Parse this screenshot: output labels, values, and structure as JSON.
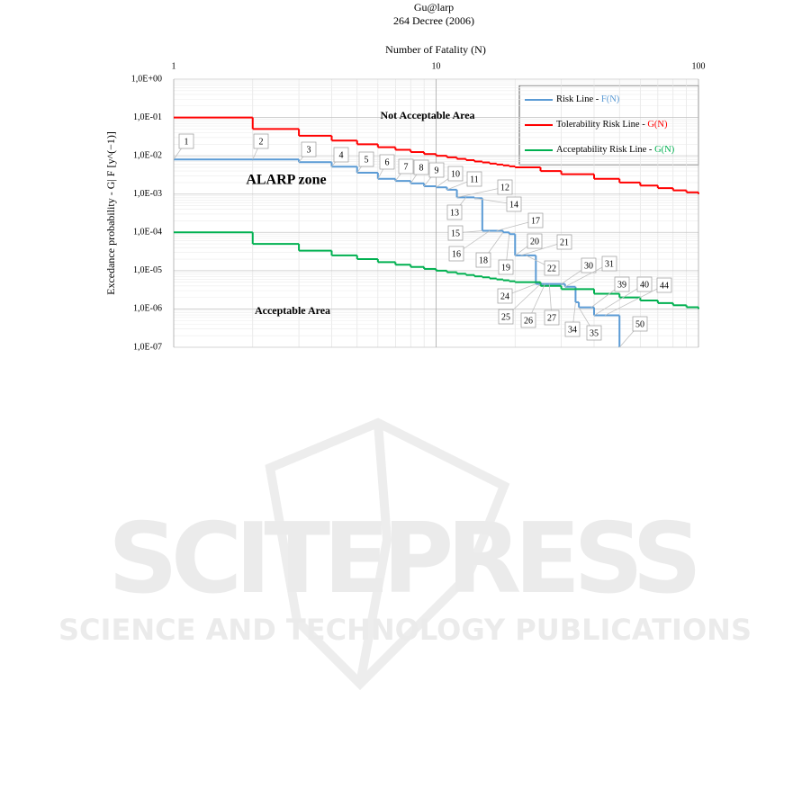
{
  "chart_data": {
    "type": "step",
    "title": "Gu@larp",
    "subtitle": "264 Decree (2006)",
    "x_label": "Number of Fatality (N)",
    "y_label": "Excedance probability - G| F  [y^(−1)]",
    "log_x": true,
    "log_y": true,
    "grid": true,
    "minor_grid": true,
    "legend": "upper right",
    "xlim": [
      1,
      100
    ],
    "xticks": [
      1,
      10,
      100
    ],
    "ylim": [
      1e-07,
      1
    ],
    "yticks": [
      {
        "value": 1,
        "label": "1,0E+00"
      },
      {
        "value": 0.1,
        "label": "1,0E-01"
      },
      {
        "value": 0.01,
        "label": "1,0E-02"
      },
      {
        "value": 0.001,
        "label": "1,0E-03"
      },
      {
        "value": 0.0001,
        "label": "1,0E-04"
      },
      {
        "value": 1e-05,
        "label": "1,0E-05"
      },
      {
        "value": 1e-06,
        "label": "1,0E-06"
      },
      {
        "value": 1e-07,
        "label": "1,0E-07"
      }
    ],
    "series": [
      {
        "name": "Risk Line - F(N)",
        "color": "#5b9bd5",
        "x": [
          1,
          3,
          4,
          5,
          6,
          7,
          8,
          9,
          10,
          11,
          12,
          14,
          15,
          18,
          19,
          20,
          24,
          31,
          34,
          35,
          40,
          50
        ],
        "values": [
          0.008,
          0.0068,
          0.0052,
          0.0036,
          0.0025,
          0.0022,
          0.0019,
          0.0016,
          0.0015,
          0.0013,
          0.00082,
          0.00078,
          0.00011,
          0.0001,
          9e-05,
          2.5e-05,
          4.5e-06,
          3.8e-06,
          1.5e-06,
          1.1e-06,
          6.8e-07,
          1e-07
        ]
      },
      {
        "name": "Tolerability Risk Line - G(N)",
        "color": "#ff0000",
        "x": [
          1,
          2,
          3,
          4,
          5,
          6,
          7,
          8,
          9,
          10,
          11,
          12,
          13,
          14,
          15,
          16,
          17,
          18,
          19,
          20,
          25,
          30,
          40,
          50,
          60,
          70,
          80,
          90,
          100
        ],
        "values": [
          0.1,
          0.05,
          0.0333,
          0.025,
          0.02,
          0.0167,
          0.0143,
          0.0125,
          0.0111,
          0.01,
          0.0091,
          0.0083,
          0.0077,
          0.0071,
          0.0067,
          0.00625,
          0.0059,
          0.0056,
          0.0053,
          0.005,
          0.004,
          0.0033,
          0.0025,
          0.002,
          0.00167,
          0.00143,
          0.00125,
          0.00111,
          0.001
        ]
      },
      {
        "name": "Acceptability Risk Line - G(N)",
        "color": "#00b050",
        "x": [
          1,
          2,
          3,
          4,
          5,
          6,
          7,
          8,
          9,
          10,
          11,
          12,
          13,
          14,
          15,
          16,
          17,
          18,
          19,
          20,
          25,
          30,
          40,
          50,
          60,
          70,
          80,
          90,
          100
        ],
        "values": [
          0.0001,
          5e-05,
          3.33e-05,
          2.5e-05,
          2e-05,
          1.67e-05,
          1.43e-05,
          1.25e-05,
          1.11e-05,
          1e-05,
          9.1e-06,
          8.3e-06,
          7.7e-06,
          7.1e-06,
          6.7e-06,
          6.25e-06,
          5.9e-06,
          5.6e-06,
          5.3e-06,
          5e-06,
          4e-06,
          3.3e-06,
          2.5e-06,
          2e-06,
          1.67e-06,
          1.43e-06,
          1.25e-06,
          1.11e-06,
          1e-06
        ]
      }
    ],
    "point_labels": [
      1,
      2,
      3,
      4,
      5,
      6,
      7,
      8,
      9,
      10,
      11,
      12,
      13,
      14,
      15,
      16,
      17,
      18,
      19,
      20,
      21,
      22,
      24,
      25,
      26,
      27,
      30,
      31,
      34,
      35,
      39,
      40,
      44,
      50
    ],
    "annotations": [
      {
        "text": "Not Acceptable Area",
        "color": "#ff0000"
      },
      {
        "text": "ALARP zone",
        "color": "#000000"
      },
      {
        "text": "Acceptable Area",
        "color": "#00b050"
      }
    ]
  },
  "watermark": {
    "title": "SCITEPRESS",
    "subtitle": "SCIENCE AND TECHNOLOGY PUBLICATIONS"
  }
}
